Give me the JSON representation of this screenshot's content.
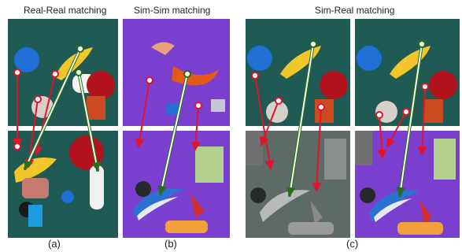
{
  "titles": {
    "a": "Real-Real matching",
    "b": "Sim-Sim matching",
    "c": "Sim-Real matching"
  },
  "captions": {
    "a": "(a)",
    "b": "(b)",
    "c": "(c)"
  },
  "colors": {
    "match_red": "#e0142a",
    "match_green_outline": "#2d6b1e",
    "match_green_fill": "#f3fff0",
    "point_white": "#ffffff"
  }
}
